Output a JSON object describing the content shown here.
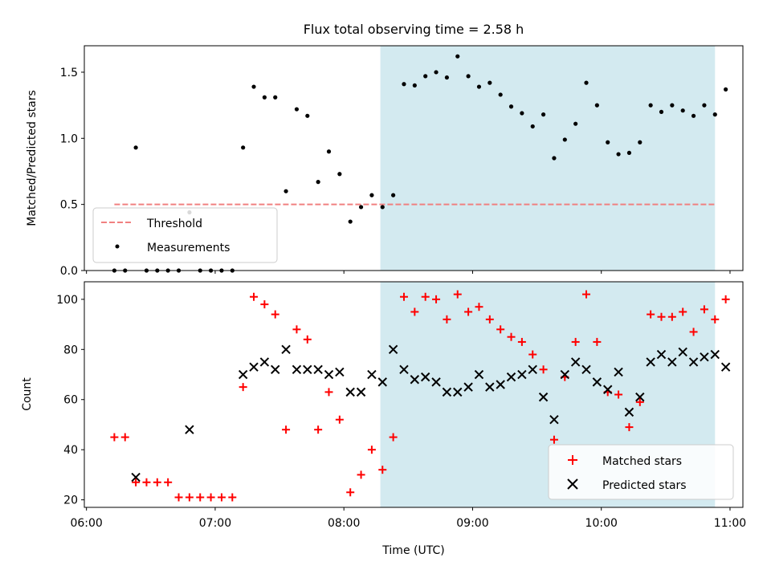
{
  "chart_data": {
    "type": "scatter",
    "title": "Flux total observing time = 2.58 h",
    "xlabel": "Time (UTC)",
    "x_ticks": [
      "06:00",
      "07:00",
      "08:00",
      "09:00",
      "10:00",
      "11:00"
    ],
    "x_range": [
      "05:59",
      "11:06"
    ],
    "highlight_span": [
      "08:17",
      "10:53"
    ],
    "colors": {
      "threshold": "#f08080",
      "measurements": "#000000",
      "matched": "#ff0000",
      "predicted": "#000000",
      "highlight": "#d3eaf0"
    },
    "panels": [
      {
        "id": "ratio",
        "ylabel": "Matched/Predicted stars",
        "ylim": [
          0,
          1.7
        ],
        "y_ticks": [
          0.0,
          0.5,
          1.0,
          1.5
        ],
        "y_tick_labels": [
          "0.0",
          "0.5",
          "1.0",
          "1.5"
        ],
        "legend_position": "lower-left",
        "threshold": {
          "name": "Threshold",
          "y": 0.5,
          "x_start": "06:13",
          "x_end": "10:53"
        },
        "series": [
          {
            "name": "Measurements",
            "marker": "dot",
            "points": [
              [
                "06:13",
                0
              ],
              [
                "06:18",
                0
              ],
              [
                "06:23",
                0.93
              ],
              [
                "06:28",
                0
              ],
              [
                "06:33",
                0
              ],
              [
                "06:38",
                0
              ],
              [
                "06:43",
                0
              ],
              [
                "06:48",
                0.44
              ],
              [
                "06:53",
                0
              ],
              [
                "06:58",
                0
              ],
              [
                "07:03",
                0
              ],
              [
                "07:08",
                0
              ],
              [
                "07:13",
                0.93
              ],
              [
                "07:18",
                1.39
              ],
              [
                "07:23",
                1.31
              ],
              [
                "07:28",
                1.31
              ],
              [
                "07:33",
                0.6
              ],
              [
                "07:38",
                1.22
              ],
              [
                "07:43",
                1.17
              ],
              [
                "07:48",
                0.67
              ],
              [
                "07:53",
                0.9
              ],
              [
                "07:58",
                0.73
              ],
              [
                "08:03",
                0.37
              ],
              [
                "08:08",
                0.48
              ],
              [
                "08:13",
                0.57
              ],
              [
                "08:18",
                0.48
              ],
              [
                "08:23",
                0.57
              ],
              [
                "08:28",
                1.41
              ],
              [
                "08:33",
                1.4
              ],
              [
                "08:38",
                1.47
              ],
              [
                "08:43",
                1.5
              ],
              [
                "08:48",
                1.46
              ],
              [
                "08:53",
                1.62
              ],
              [
                "08:58",
                1.47
              ],
              [
                "09:03",
                1.39
              ],
              [
                "09:08",
                1.42
              ],
              [
                "09:13",
                1.33
              ],
              [
                "09:18",
                1.24
              ],
              [
                "09:23",
                1.19
              ],
              [
                "09:28",
                1.09
              ],
              [
                "09:33",
                1.18
              ],
              [
                "09:38",
                0.85
              ],
              [
                "09:43",
                0.99
              ],
              [
                "09:48",
                1.11
              ],
              [
                "09:53",
                1.42
              ],
              [
                "09:58",
                1.25
              ],
              [
                "10:03",
                0.97
              ],
              [
                "10:08",
                0.88
              ],
              [
                "10:13",
                0.89
              ],
              [
                "10:18",
                0.97
              ],
              [
                "10:23",
                1.25
              ],
              [
                "10:28",
                1.2
              ],
              [
                "10:33",
                1.25
              ],
              [
                "10:38",
                1.21
              ],
              [
                "10:43",
                1.17
              ],
              [
                "10:48",
                1.25
              ],
              [
                "10:53",
                1.18
              ],
              [
                "10:58",
                1.37
              ]
            ]
          }
        ]
      },
      {
        "id": "count",
        "ylabel": "Count",
        "ylim": [
          17,
          107
        ],
        "y_ticks": [
          20,
          40,
          60,
          80,
          100
        ],
        "y_tick_labels": [
          "20",
          "40",
          "60",
          "80",
          "100"
        ],
        "legend_position": "lower-right",
        "series": [
          {
            "name": "Matched stars",
            "marker": "plus",
            "points": [
              [
                "06:13",
                45
              ],
              [
                "06:18",
                45
              ],
              [
                "06:23",
                27
              ],
              [
                "06:28",
                27
              ],
              [
                "06:33",
                27
              ],
              [
                "06:38",
                27
              ],
              [
                "06:43",
                21
              ],
              [
                "06:48",
                21
              ],
              [
                "06:53",
                21
              ],
              [
                "06:58",
                21
              ],
              [
                "07:03",
                21
              ],
              [
                "07:08",
                21
              ],
              [
                "07:13",
                65
              ],
              [
                "07:18",
                101
              ],
              [
                "07:23",
                98
              ],
              [
                "07:28",
                94
              ],
              [
                "07:33",
                48
              ],
              [
                "07:38",
                88
              ],
              [
                "07:43",
                84
              ],
              [
                "07:48",
                48
              ],
              [
                "07:53",
                63
              ],
              [
                "07:58",
                52
              ],
              [
                "08:03",
                23
              ],
              [
                "08:08",
                30
              ],
              [
                "08:13",
                40
              ],
              [
                "08:18",
                32
              ],
              [
                "08:23",
                45
              ],
              [
                "08:28",
                101
              ],
              [
                "08:33",
                95
              ],
              [
                "08:38",
                101
              ],
              [
                "08:43",
                100
              ],
              [
                "08:48",
                92
              ],
              [
                "08:53",
                102
              ],
              [
                "08:58",
                95
              ],
              [
                "09:03",
                97
              ],
              [
                "09:08",
                92
              ],
              [
                "09:13",
                88
              ],
              [
                "09:18",
                85
              ],
              [
                "09:23",
                83
              ],
              [
                "09:28",
                78
              ],
              [
                "09:33",
                72
              ],
              [
                "09:38",
                44
              ],
              [
                "09:43",
                69
              ],
              [
                "09:48",
                83
              ],
              [
                "09:53",
                102
              ],
              [
                "09:58",
                83
              ],
              [
                "10:03",
                63
              ],
              [
                "10:08",
                62
              ],
              [
                "10:13",
                49
              ],
              [
                "10:18",
                59
              ],
              [
                "10:23",
                94
              ],
              [
                "10:28",
                93
              ],
              [
                "10:33",
                93
              ],
              [
                "10:38",
                95
              ],
              [
                "10:43",
                87
              ],
              [
                "10:48",
                96
              ],
              [
                "10:53",
                92
              ],
              [
                "10:58",
                100
              ]
            ]
          },
          {
            "name": "Predicted stars",
            "marker": "x",
            "points": [
              [
                "06:23",
                29
              ],
              [
                "06:48",
                48
              ],
              [
                "07:13",
                70
              ],
              [
                "07:18",
                73
              ],
              [
                "07:23",
                75
              ],
              [
                "07:28",
                72
              ],
              [
                "07:33",
                80
              ],
              [
                "07:38",
                72
              ],
              [
                "07:43",
                72
              ],
              [
                "07:48",
                72
              ],
              [
                "07:53",
                70
              ],
              [
                "07:58",
                71
              ],
              [
                "08:03",
                63
              ],
              [
                "08:08",
                63
              ],
              [
                "08:13",
                70
              ],
              [
                "08:18",
                67
              ],
              [
                "08:23",
                80
              ],
              [
                "08:28",
                72
              ],
              [
                "08:33",
                68
              ],
              [
                "08:38",
                69
              ],
              [
                "08:43",
                67
              ],
              [
                "08:48",
                63
              ],
              [
                "08:53",
                63
              ],
              [
                "08:58",
                65
              ],
              [
                "09:03",
                70
              ],
              [
                "09:08",
                65
              ],
              [
                "09:13",
                66
              ],
              [
                "09:18",
                69
              ],
              [
                "09:23",
                70
              ],
              [
                "09:28",
                72
              ],
              [
                "09:33",
                61
              ],
              [
                "09:38",
                52
              ],
              [
                "09:43",
                70
              ],
              [
                "09:48",
                75
              ],
              [
                "09:53",
                72
              ],
              [
                "09:58",
                67
              ],
              [
                "10:03",
                64
              ],
              [
                "10:08",
                71
              ],
              [
                "10:13",
                55
              ],
              [
                "10:18",
                61
              ],
              [
                "10:23",
                75
              ],
              [
                "10:28",
                78
              ],
              [
                "10:33",
                75
              ],
              [
                "10:38",
                79
              ],
              [
                "10:43",
                75
              ],
              [
                "10:48",
                77
              ],
              [
                "10:53",
                78
              ],
              [
                "10:58",
                73
              ]
            ]
          }
        ]
      }
    ]
  }
}
